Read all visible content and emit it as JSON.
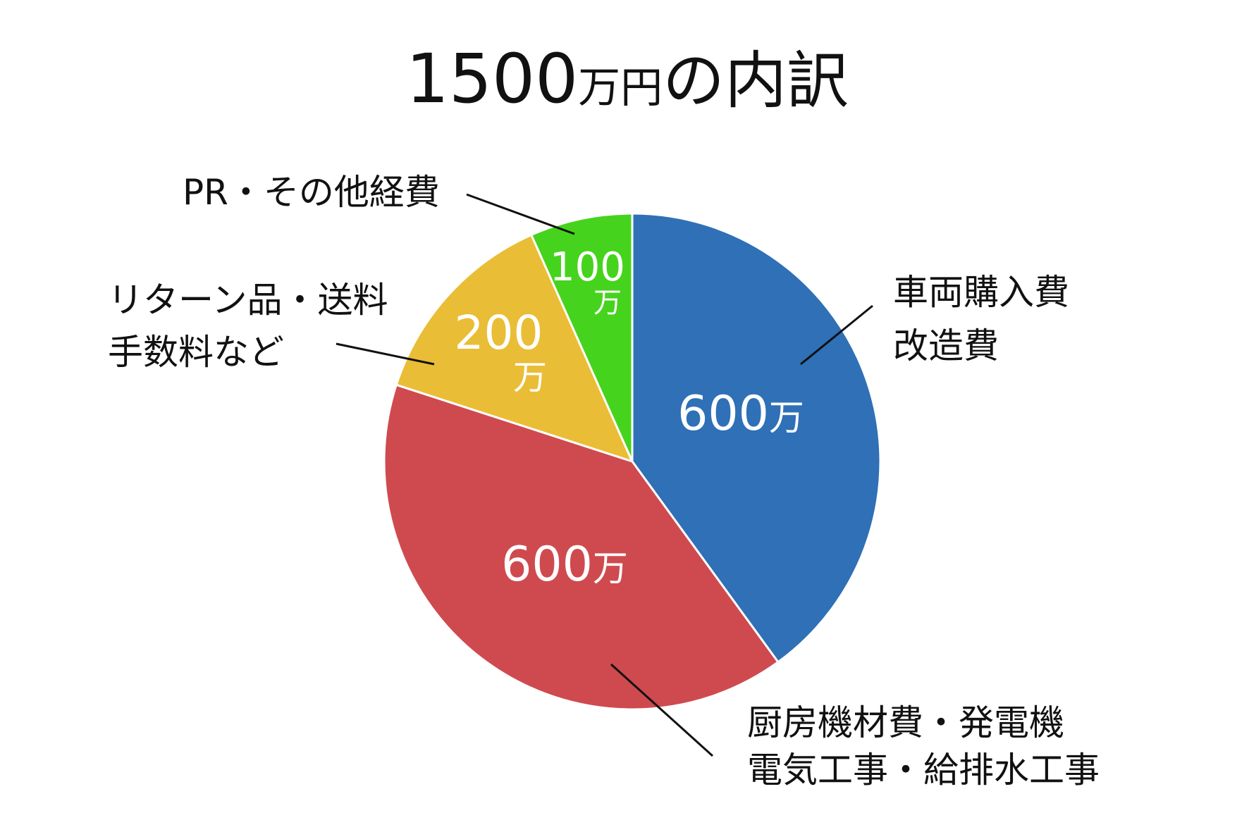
{
  "chart_data": {
    "type": "pie",
    "title": "1500万円の内訳",
    "title_parts": {
      "number": "1500",
      "unit": "万円",
      "rest": "の内訳"
    },
    "unit": "万",
    "start": "top",
    "direction": "clockwise",
    "slices": [
      {
        "label_lines": [
          "車両購入費",
          "改造費"
        ],
        "value": 600,
        "value_text": "600",
        "color": "#2f70b7"
      },
      {
        "label_lines": [
          "厨房機材費・発電機",
          "電気工事・給排水工事"
        ],
        "value": 600,
        "value_text": "600",
        "color": "#cf4a4e"
      },
      {
        "label_lines": [
          "リターン品・送料",
          "手数料など"
        ],
        "value": 200,
        "value_text": "200",
        "color": "#eabd36"
      },
      {
        "label_lines": [
          "PR・その他経費"
        ],
        "value": 100,
        "value_text": "100",
        "color": "#46d31d"
      }
    ]
  }
}
